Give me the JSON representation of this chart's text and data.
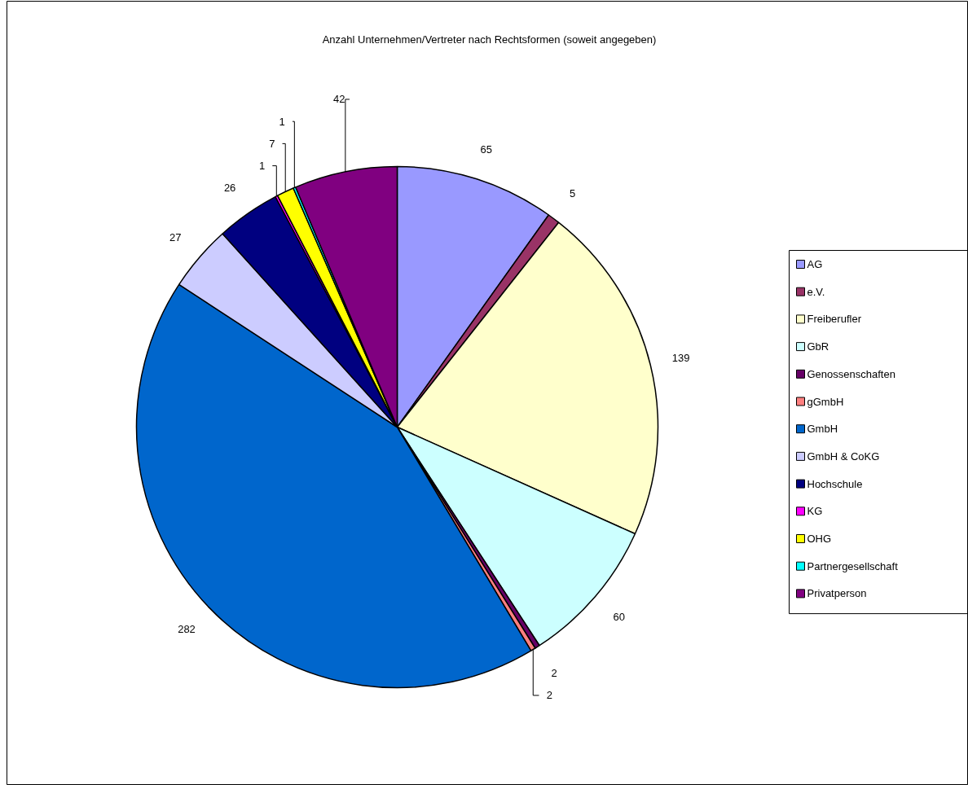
{
  "chart_data": {
    "type": "pie",
    "title": "Anzahl Unternehmen/Vertreter nach Rechtsformen (soweit angegeben)",
    "categories": [
      "AG",
      "e.V.",
      "Freiberufler",
      "GbR",
      "Genossenschaften",
      "gGmbH",
      "GmbH",
      "GmbH & CoKG",
      "Hochschule",
      "KG",
      "OHG",
      "Partnergesellschaft",
      "Privatperson"
    ],
    "values": [
      65,
      5,
      139,
      60,
      2,
      2,
      282,
      27,
      26,
      1,
      7,
      1,
      42
    ],
    "colors": [
      "#9999ff",
      "#993366",
      "#ffffcc",
      "#ccffff",
      "#660066",
      "#ff8080",
      "#0066cc",
      "#ccccff",
      "#000080",
      "#ff00ff",
      "#ffff00",
      "#00ffff",
      "#800080"
    ],
    "data_labels": true,
    "legend": "right"
  }
}
